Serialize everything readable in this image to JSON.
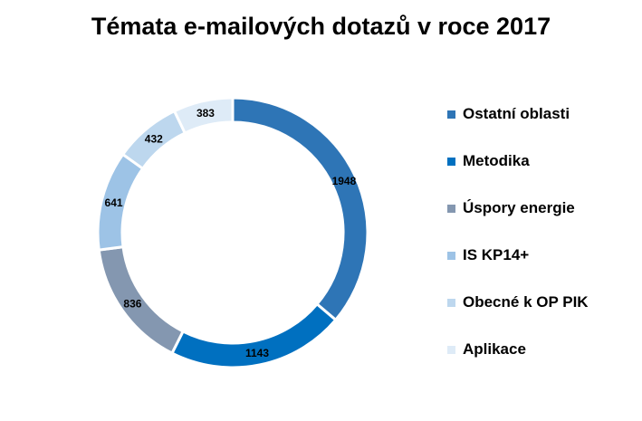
{
  "chart_data": {
    "type": "pie",
    "subtype": "donut",
    "title": "Témata e-mailových dotazů v roce 2017",
    "categories": [
      "Ostatní oblasti",
      "Metodika",
      "Úspory energie",
      "IS KP14+",
      "Obecné k OP PIK",
      "Aplikace"
    ],
    "values": [
      1948,
      1143,
      836,
      641,
      432,
      383
    ],
    "colors": [
      "#2E75B6",
      "#0070C0",
      "#8497B0",
      "#9DC3E6",
      "#BDD7EE",
      "#DEEBF7"
    ],
    "legend_position": "right",
    "data_labels": true
  }
}
